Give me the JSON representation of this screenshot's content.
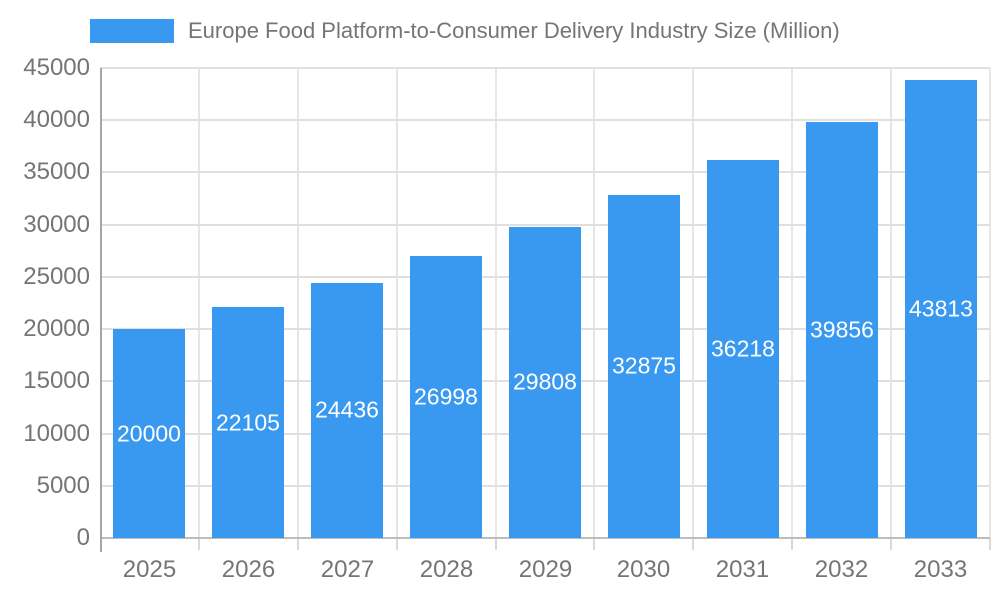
{
  "chart_data": {
    "type": "bar",
    "title": "Europe Food Platform-to-Consumer Delivery Industry Size (Million)",
    "legend": {
      "position": "top-left",
      "label": "Europe Food Platform-to-Consumer Delivery Industry Size (Million)"
    },
    "categories": [
      "2025",
      "2026",
      "2027",
      "2028",
      "2029",
      "2030",
      "2031",
      "2032",
      "2033"
    ],
    "values": [
      20000,
      22105,
      24436,
      26998,
      29808,
      32875,
      36218,
      39856,
      43813
    ],
    "value_labels_position": "inside-center",
    "xlabel": "",
    "ylabel": "",
    "ylim": [
      0,
      45000
    ],
    "yticks": [
      0,
      5000,
      10000,
      15000,
      20000,
      25000,
      30000,
      35000,
      40000,
      45000
    ],
    "grid": true,
    "colors": {
      "bar": "#3999F0",
      "value_label_text": "#ffffff",
      "axis_text": "#757575",
      "legend_text": "#757575",
      "gridline_horizontal": "#e0e0e0",
      "gridline_vertical": "#e6e6e6",
      "y_axis_line": "#a6a6a6",
      "x_axis_line": "#bdbdbd",
      "tick_mark": "#d9d9d9",
      "background": "#ffffff"
    }
  }
}
